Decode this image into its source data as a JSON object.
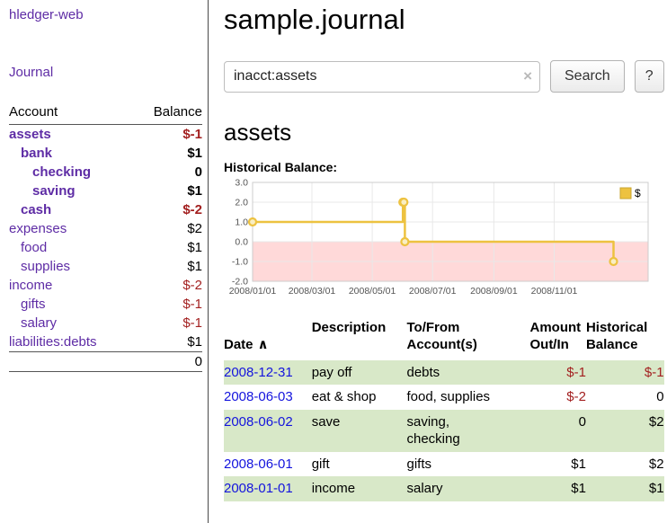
{
  "colors": {
    "link-purple": "#5e2ca5",
    "date-blue": "#1414dd",
    "negative-red": "#a32020",
    "row-green": "#d8e8c8"
  },
  "sidebar": {
    "app_title": "hledger-web",
    "journal_link": "Journal",
    "accounts_table": {
      "col_account": "Account",
      "col_balance": "Balance",
      "rows": [
        {
          "name": "assets",
          "indent": 0,
          "balance": "$-1",
          "bold": true,
          "negative": true
        },
        {
          "name": "bank",
          "indent": 1,
          "balance": "$1",
          "bold": true,
          "negative": false
        },
        {
          "name": "checking",
          "indent": 2,
          "balance": "0",
          "bold": true,
          "negative": false
        },
        {
          "name": "saving",
          "indent": 2,
          "balance": "$1",
          "bold": true,
          "negative": false
        },
        {
          "name": "cash",
          "indent": 1,
          "balance": "$-2",
          "bold": true,
          "negative": true
        },
        {
          "name": "expenses",
          "indent": 0,
          "balance": "$2",
          "bold": false,
          "negative": false
        },
        {
          "name": "food",
          "indent": 1,
          "balance": "$1",
          "bold": false,
          "negative": false
        },
        {
          "name": "supplies",
          "indent": 1,
          "balance": "$1",
          "bold": false,
          "negative": false
        },
        {
          "name": "income",
          "indent": 0,
          "balance": "$-2",
          "bold": false,
          "negative": true
        },
        {
          "name": "gifts",
          "indent": 1,
          "balance": "$-1",
          "bold": false,
          "negative": true
        },
        {
          "name": "salary",
          "indent": 1,
          "balance": "$-1",
          "bold": false,
          "negative": true
        },
        {
          "name": "liabilities:debts",
          "indent": 0,
          "balance": "$1",
          "bold": false,
          "negative": false
        }
      ],
      "total": "0"
    }
  },
  "main": {
    "title": "sample.journal",
    "search": {
      "value": "inacct:assets",
      "clear_icon": "×",
      "button": "Search",
      "help_button": "?"
    },
    "account_heading": "assets",
    "chart_label": "Historical Balance:"
  },
  "chart_data": {
    "type": "line",
    "step": true,
    "title": "Historical Balance",
    "legend_label": "$",
    "legend_position": "top-right",
    "grid": true,
    "ylim": [
      -2,
      3
    ],
    "xlim_days": [
      0,
      400
    ],
    "y_ticks": [
      {
        "label": "3.0",
        "value": 3
      },
      {
        "label": "2.0",
        "value": 2
      },
      {
        "label": "1.0",
        "value": 1
      },
      {
        "label": "0.0",
        "value": 0
      },
      {
        "label": "-1.0",
        "value": -1
      },
      {
        "label": "-2.0",
        "value": -2
      }
    ],
    "x_ticks": [
      {
        "label": "2008/01/01",
        "day": 0
      },
      {
        "label": "2008/03/01",
        "day": 60
      },
      {
        "label": "2008/05/01",
        "day": 121
      },
      {
        "label": "2008/07/01",
        "day": 182
      },
      {
        "label": "2008/09/01",
        "day": 244
      },
      {
        "label": "2008/11/01",
        "day": 305
      }
    ],
    "points": [
      {
        "date": "2008-01-01",
        "day": 0,
        "value": 1
      },
      {
        "date": "2008-06-01",
        "day": 152,
        "value": 2
      },
      {
        "date": "2008-06-02",
        "day": 153,
        "value": 2
      },
      {
        "date": "2008-06-03",
        "day": 154,
        "value": 0
      },
      {
        "date": "2008-12-31",
        "day": 365,
        "value": -1
      }
    ],
    "colors": {
      "line": "#edc240",
      "marker_fill": "#f9eec3",
      "negative_region": "#ffd9d9",
      "grid": "#e8e8e8",
      "border": "#cccccc",
      "legend_border": "#c9a52f"
    }
  },
  "register": {
    "headers": {
      "date": "Date",
      "sort": "∧",
      "description": "Description",
      "account": "To/From\nAccount(s)",
      "amount": "Amount\nOut/In",
      "balance": "Historical\nBalance"
    },
    "rows": [
      {
        "date": "2008-12-31",
        "description": "pay off",
        "accounts": [
          "debts"
        ],
        "amount": "$-1",
        "amount_negative": true,
        "balance": "$-1",
        "balance_negative": true,
        "shaded": true
      },
      {
        "date": "2008-06-03",
        "description": "eat & shop",
        "accounts": [
          "food, supplies"
        ],
        "amount": "$-2",
        "amount_negative": true,
        "balance": "0",
        "balance_negative": false,
        "shaded": false
      },
      {
        "date": "2008-06-02",
        "description": "save",
        "accounts": [
          "saving,",
          "checking"
        ],
        "amount": "0",
        "amount_negative": false,
        "balance": "$2",
        "balance_negative": false,
        "shaded": true
      },
      {
        "date": "2008-06-01",
        "description": "gift",
        "accounts": [
          "gifts"
        ],
        "amount": "$1",
        "amount_negative": false,
        "balance": "$2",
        "balance_negative": false,
        "shaded": false
      },
      {
        "date": "2008-01-01",
        "description": "income",
        "accounts": [
          "salary"
        ],
        "amount": "$1",
        "amount_negative": false,
        "balance": "$1",
        "balance_negative": false,
        "shaded": true
      }
    ]
  }
}
